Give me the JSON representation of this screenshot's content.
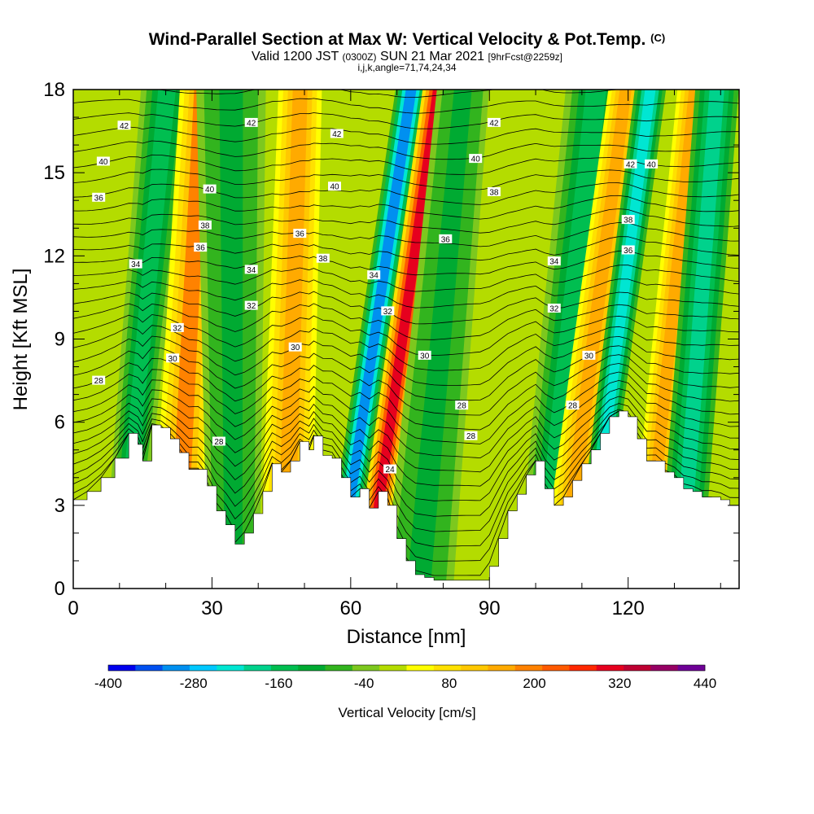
{
  "title": {
    "main": "Wind-Parallel Section at Max W: Vertical Velocity & Pot.Temp.",
    "copyright": "(C)",
    "line2_a": "Valid 1200 JST",
    "line2_b": "(0300Z)",
    "line2_c": "SUN 21 Mar 2021",
    "line2_d": "[9hrFcst@2259z]",
    "line3": "i,j,k,angle=71,74,24,34"
  },
  "chart_data": {
    "type": "heatmap",
    "xlabel": "Distance [nm]",
    "ylabel": "Height [Kft MSL]",
    "xlim": [
      0,
      144
    ],
    "ylim": [
      0,
      18
    ],
    "x_ticks": [
      0,
      30,
      60,
      90,
      120
    ],
    "y_ticks": [
      0,
      3,
      6,
      9,
      12,
      15,
      18
    ],
    "colorbar": {
      "label": "Vertical Velocity [cm/s]",
      "tick_labels": [
        "-400",
        "-280",
        "-160",
        "-40",
        "80",
        "200",
        "320",
        "440"
      ],
      "tick_values": [
        -400,
        -280,
        -160,
        -40,
        80,
        200,
        320,
        440
      ],
      "step": 40,
      "colors": [
        "#0000ee",
        "#0050f0",
        "#0090f0",
        "#00c8ff",
        "#00e6d2",
        "#00d28c",
        "#00be50",
        "#00aa32",
        "#32b41e",
        "#7dc81e",
        "#b4dc00",
        "#ffff00",
        "#ffe100",
        "#ffc800",
        "#ffaa00",
        "#ff8200",
        "#ff5a00",
        "#ff2800",
        "#e6001e",
        "#be0032",
        "#960064",
        "#6e0096"
      ]
    },
    "terrain_kft": {
      "x": [
        0,
        3,
        6,
        9,
        12,
        14,
        15,
        17,
        19,
        21,
        23,
        25,
        27,
        29,
        31,
        33,
        35,
        37,
        39,
        41,
        43,
        45,
        47,
        49,
        51,
        52,
        54,
        56,
        58,
        60,
        62,
        64,
        66,
        68,
        70,
        72,
        74,
        76,
        78,
        80,
        82,
        84,
        86,
        88,
        90,
        92,
        94,
        96,
        98,
        100,
        102,
        104,
        106,
        108,
        110,
        112,
        114,
        116,
        118,
        120,
        122,
        124,
        126,
        128,
        130,
        132,
        134,
        136,
        138,
        140,
        142,
        144
      ],
      "y": [
        3.2,
        3.5,
        4.0,
        4.7,
        5.6,
        5.2,
        4.6,
        5.9,
        5.8,
        5.4,
        4.9,
        4.3,
        4.3,
        3.7,
        2.8,
        2.3,
        1.6,
        2.0,
        2.7,
        3.5,
        4.5,
        4.2,
        4.6,
        5.3,
        5.0,
        5.5,
        4.8,
        4.7,
        4.0,
        3.3,
        3.6,
        2.9,
        3.5,
        3.0,
        1.8,
        1.0,
        0.5,
        0.4,
        0.3,
        0.3,
        0.3,
        0.3,
        0.3,
        0.3,
        0.8,
        1.8,
        2.8,
        3.4,
        4.1,
        4.6,
        3.6,
        3.0,
        3.3,
        3.9,
        4.5,
        5.0,
        5.6,
        6.2,
        6.4,
        6.2,
        5.4,
        4.6,
        4.6,
        4.2,
        4.0,
        3.6,
        3.5,
        3.3,
        3.3,
        3.2,
        3.0,
        3.0
      ]
    },
    "bands": [
      {
        "x_top": 38,
        "x_bot": 19,
        "w_top": 3,
        "w_bot": 2,
        "value": -120
      },
      {
        "x_top": 52,
        "x_bot": 42,
        "w_top": 2.5,
        "w_bot": 3,
        "value": 200
      },
      {
        "x_top": 64,
        "x_bot": 65,
        "w_top": 4,
        "w_bot": 3,
        "value": -90
      },
      {
        "x_top": 92,
        "x_bot": 86,
        "w_top": 2.5,
        "w_bot": 3,
        "value": 180
      },
      {
        "x_top": 137,
        "x_bot": 107,
        "w_top": 1.8,
        "w_bot": 1.6,
        "value": -300
      },
      {
        "x_top": 148,
        "x_bot": 119,
        "w_top": 1.8,
        "w_bot": 1.6,
        "value": 320
      },
      {
        "x_top": 158,
        "x_bot": 140,
        "w_top": 3,
        "w_bot": 4,
        "value": -80
      },
      {
        "x_top": 212,
        "x_bot": 190,
        "w_top": 3.5,
        "w_bot": 3,
        "value": -140
      },
      {
        "x_top": 224,
        "x_bot": 198,
        "w_top": 2,
        "w_bot": 2.5,
        "value": 160
      },
      {
        "x_top": 234,
        "x_bot": 208,
        "w_top": 1.8,
        "w_bot": 1.5,
        "value": -220
      },
      {
        "x_top": 252,
        "x_bot": 232,
        "w_top": 2,
        "w_bot": 2,
        "value": 170
      },
      {
        "x_top": 261,
        "x_bot": 246,
        "w_top": 2.5,
        "w_bot": 2.5,
        "value": -160
      }
    ],
    "theta_labels": [
      {
        "text": "42",
        "x": 11,
        "y": 16.7
      },
      {
        "text": "40",
        "x": 6.5,
        "y": 15.4
      },
      {
        "text": "36",
        "x": 5.5,
        "y": 14.1
      },
      {
        "text": "34",
        "x": 13.5,
        "y": 11.7
      },
      {
        "text": "32",
        "x": 22.5,
        "y": 9.4
      },
      {
        "text": "30",
        "x": 21.5,
        "y": 8.3
      },
      {
        "text": "28",
        "x": 5.5,
        "y": 7.5
      },
      {
        "text": "40",
        "x": 29.5,
        "y": 14.4
      },
      {
        "text": "38",
        "x": 28.5,
        "y": 13.1
      },
      {
        "text": "36",
        "x": 27.5,
        "y": 12.3
      },
      {
        "text": "28",
        "x": 31.5,
        "y": 5.3
      },
      {
        "text": "42",
        "x": 38.5,
        "y": 16.8
      },
      {
        "text": "34",
        "x": 38.5,
        "y": 11.5
      },
      {
        "text": "32",
        "x": 38.5,
        "y": 10.2
      },
      {
        "text": "30",
        "x": 48,
        "y": 8.7
      },
      {
        "text": "36",
        "x": 49,
        "y": 12.8
      },
      {
        "text": "38",
        "x": 54,
        "y": 11.9
      },
      {
        "text": "40",
        "x": 56.5,
        "y": 14.5
      },
      {
        "text": "42",
        "x": 57,
        "y": 16.4
      },
      {
        "text": "34",
        "x": 65,
        "y": 11.3
      },
      {
        "text": "32",
        "x": 68,
        "y": 10.0
      },
      {
        "text": "30",
        "x": 76,
        "y": 8.4
      },
      {
        "text": "28",
        "x": 84,
        "y": 6.6
      },
      {
        "text": "28",
        "x": 86,
        "y": 5.5
      },
      {
        "text": "24",
        "x": 68.5,
        "y": 4.3
      },
      {
        "text": "42",
        "x": 91,
        "y": 16.8
      },
      {
        "text": "40",
        "x": 87,
        "y": 15.5
      },
      {
        "text": "38",
        "x": 91,
        "y": 14.3
      },
      {
        "text": "36",
        "x": 80.5,
        "y": 12.6
      },
      {
        "text": "34",
        "x": 104,
        "y": 11.8
      },
      {
        "text": "32",
        "x": 104,
        "y": 10.1
      },
      {
        "text": "30",
        "x": 111.5,
        "y": 8.4
      },
      {
        "text": "28",
        "x": 108,
        "y": 6.6
      },
      {
        "text": "42",
        "x": 120.5,
        "y": 15.3
      },
      {
        "text": "40",
        "x": 125,
        "y": 15.3
      },
      {
        "text": "38",
        "x": 120,
        "y": 13.3
      },
      {
        "text": "36",
        "x": 120,
        "y": 12.2
      }
    ]
  }
}
